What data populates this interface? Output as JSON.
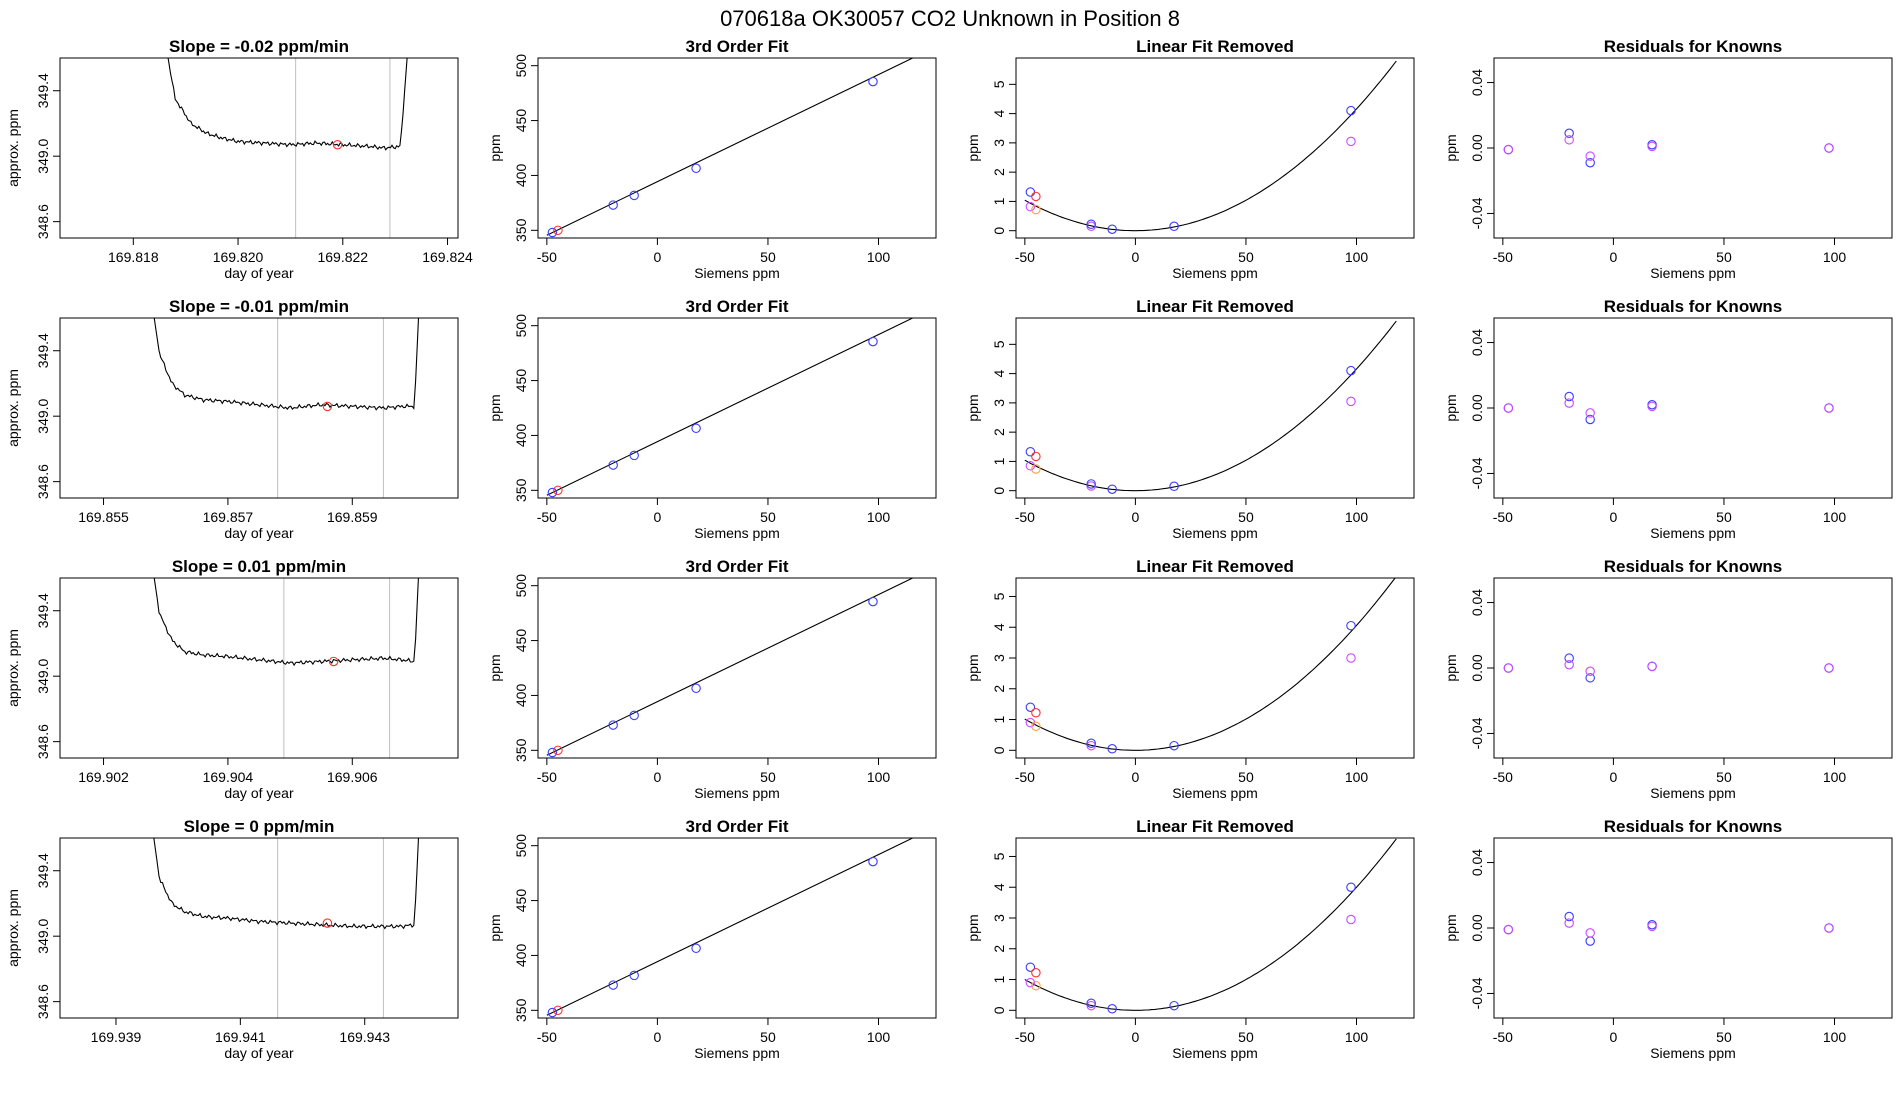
{
  "page_title": "070618a      OK30057    CO2 Unknown in Position  8",
  "colors": {
    "known_blue": "#3b3bff",
    "unknown_red": "#ff3030",
    "violet": "#c84bff",
    "orange": "#ffa040",
    "curve": "#000000",
    "vline": "#bfbfbf"
  },
  "chart_data": [
    {
      "type": "line",
      "panel": "timeseries",
      "row": 0,
      "title": "Slope =  -0.02  ppm/min",
      "xlabel": "day of year",
      "ylabel": "approx. ppm",
      "xlim": [
        169.8166,
        169.8242
      ],
      "ylim": [
        348.5,
        349.6
      ],
      "xticks": [
        169.818,
        169.82,
        169.822,
        169.824
      ],
      "xtick_labels": [
        "169.818",
        "169.820",
        "169.822",
        "169.824"
      ],
      "yticks": [
        348.6,
        349.0,
        349.4
      ],
      "ytick_labels": [
        "348.6",
        "349.0",
        "349.4"
      ],
      "vlines": [
        169.8211,
        169.8229
      ],
      "series_x": [
        169.8185,
        169.8188,
        169.8191,
        169.8194,
        169.8197,
        169.82,
        169.8205,
        169.821,
        169.8215,
        169.822,
        169.8225,
        169.8228,
        169.8231,
        169.8233
      ],
      "series_y": [
        349.9,
        349.35,
        349.2,
        349.14,
        349.11,
        349.09,
        349.08,
        349.07,
        349.08,
        349.07,
        349.06,
        349.05,
        349.06,
        349.9
      ],
      "marker": [
        169.8219,
        349.07
      ]
    },
    {
      "type": "scatter",
      "panel": "fit",
      "row": 0,
      "title": "3rd Order Fit",
      "xlabel": "Siemens ppm",
      "ylabel": "ppm",
      "xlim": [
        -54,
        126
      ],
      "ylim": [
        343,
        507
      ],
      "xticks": [
        -50,
        0,
        50,
        100
      ],
      "xtick_labels": [
        "-50",
        "0",
        "50",
        "100"
      ],
      "yticks": [
        350,
        400,
        450,
        500
      ],
      "ytick_labels": [
        "350",
        "400",
        "450",
        "500"
      ],
      "line": [
        [
          -50,
          345.5
        ],
        [
          118,
          509.5
        ]
      ],
      "points_blue": [
        [
          -47.5,
          348
        ],
        [
          -20,
          373
        ],
        [
          -10.5,
          381.8
        ],
        [
          17.5,
          406.5
        ],
        [
          97.5,
          485.5
        ]
      ],
      "points_red": [
        [
          -45,
          350
        ]
      ]
    },
    {
      "type": "scatter",
      "panel": "residual",
      "row": 0,
      "title": "Linear Fit Removed",
      "xlabel": "Siemens ppm",
      "ylabel": "ppm",
      "xlim": [
        -54,
        126
      ],
      "ylim": [
        -0.25,
        5.9
      ],
      "xticks": [
        -50,
        0,
        50,
        100
      ],
      "xtick_labels": [
        "-50",
        "0",
        "50",
        "100"
      ],
      "yticks": [
        0,
        1,
        2,
        3,
        4,
        5
      ],
      "ytick_labels": [
        "0",
        "1",
        "2",
        "3",
        "4",
        "5"
      ],
      "curve_a": 0.000416,
      "points_blue": [
        [
          -47.5,
          1.32
        ],
        [
          -20,
          0.22
        ],
        [
          -10.5,
          0.05
        ],
        [
          17.5,
          0.15
        ],
        [
          97.5,
          4.1
        ]
      ],
      "points_red": [
        [
          -45,
          1.17
        ]
      ],
      "points_violet": [
        [
          -47.5,
          0.82
        ],
        [
          -20,
          0.15
        ],
        [
          97.5,
          3.05
        ]
      ],
      "points_orange": [
        [
          -45,
          0.72
        ]
      ]
    },
    {
      "type": "scatter",
      "panel": "knowns",
      "row": 0,
      "title": "Residuals for Knowns",
      "xlabel": "Siemens ppm",
      "ylabel": "ppm",
      "xlim": [
        -54,
        126
      ],
      "ylim": [
        -0.055,
        0.055
      ],
      "xticks": [
        -50,
        0,
        50,
        100
      ],
      "xtick_labels": [
        "-50",
        "0",
        "50",
        "100"
      ],
      "yticks": [
        -0.04,
        0,
        0.04
      ],
      "ytick_labels": [
        "-0.04",
        "0.00",
        "0.04"
      ],
      "points_blue": [
        [
          -47.5,
          -0.001
        ],
        [
          -20,
          0.009
        ],
        [
          -10.5,
          -0.009
        ],
        [
          17.5,
          0.002
        ],
        [
          97.5,
          0.0
        ]
      ],
      "points_violet": [
        [
          -47.5,
          -0.001
        ],
        [
          -20,
          0.005
        ],
        [
          -10.5,
          -0.005
        ],
        [
          17.5,
          0.001
        ],
        [
          97.5,
          0.0
        ]
      ]
    },
    {
      "type": "line",
      "panel": "timeseries",
      "row": 1,
      "title": "Slope =  -0.01  ppm/min",
      "xlabel": "day of year",
      "ylabel": "approx. ppm",
      "xlim": [
        169.8543,
        169.8607
      ],
      "ylim": [
        348.5,
        349.6
      ],
      "xticks": [
        169.855,
        169.857,
        169.859
      ],
      "xtick_labels": [
        "169.855",
        "169.857",
        "169.859"
      ],
      "yticks": [
        348.6,
        349.0,
        349.4
      ],
      "ytick_labels": [
        "348.6",
        "349.0",
        "349.4"
      ],
      "vlines": [
        169.8578,
        169.8595
      ],
      "series_x": [
        169.8557,
        169.8559,
        169.8561,
        169.8563,
        169.8566,
        169.857,
        169.8575,
        169.858,
        169.8585,
        169.859,
        169.8595,
        169.8598,
        169.86,
        169.8601
      ],
      "series_y": [
        349.9,
        349.38,
        349.2,
        349.13,
        349.1,
        349.09,
        349.07,
        349.05,
        349.07,
        349.06,
        349.05,
        349.06,
        349.06,
        349.9
      ],
      "marker": [
        169.8586,
        349.06
      ]
    },
    {
      "type": "scatter",
      "panel": "fit",
      "row": 1,
      "title": "3rd Order Fit",
      "xlabel": "Siemens ppm",
      "ylabel": "ppm",
      "xlim": [
        -54,
        126
      ],
      "ylim": [
        343,
        507
      ],
      "xticks": [
        -50,
        0,
        50,
        100
      ],
      "xtick_labels": [
        "-50",
        "0",
        "50",
        "100"
      ],
      "yticks": [
        350,
        400,
        450,
        500
      ],
      "ytick_labels": [
        "350",
        "400",
        "450",
        "500"
      ],
      "line": [
        [
          -50,
          345.5
        ],
        [
          118,
          509.5
        ]
      ],
      "points_blue": [
        [
          -47.5,
          348
        ],
        [
          -20,
          373
        ],
        [
          -10.5,
          381.8
        ],
        [
          17.5,
          406.5
        ],
        [
          97.5,
          485.5
        ]
      ],
      "points_red": [
        [
          -45,
          350
        ]
      ]
    },
    {
      "type": "scatter",
      "panel": "residual",
      "row": 1,
      "title": "Linear Fit Removed",
      "xlabel": "Siemens ppm",
      "ylabel": "ppm",
      "xlim": [
        -54,
        126
      ],
      "ylim": [
        -0.25,
        5.9
      ],
      "xticks": [
        -50,
        0,
        50,
        100
      ],
      "xtick_labels": [
        "-50",
        "0",
        "50",
        "100"
      ],
      "yticks": [
        0,
        1,
        2,
        3,
        4,
        5
      ],
      "ytick_labels": [
        "0",
        "1",
        "2",
        "3",
        "4",
        "5"
      ],
      "curve_a": 0.000416,
      "points_blue": [
        [
          -47.5,
          1.33
        ],
        [
          -20,
          0.23
        ],
        [
          -10.5,
          0.05
        ],
        [
          17.5,
          0.15
        ],
        [
          97.5,
          4.1
        ]
      ],
      "points_red": [
        [
          -45,
          1.17
        ]
      ],
      "points_violet": [
        [
          -47.5,
          0.85
        ],
        [
          -20,
          0.16
        ],
        [
          97.5,
          3.05
        ]
      ],
      "points_orange": [
        [
          -45,
          0.74
        ]
      ]
    },
    {
      "type": "scatter",
      "panel": "knowns",
      "row": 1,
      "title": "Residuals for Knowns",
      "xlabel": "Siemens ppm",
      "ylabel": "ppm",
      "xlim": [
        -54,
        126
      ],
      "ylim": [
        -0.055,
        0.055
      ],
      "xticks": [
        -50,
        0,
        50,
        100
      ],
      "xtick_labels": [
        "-50",
        "0",
        "50",
        "100"
      ],
      "yticks": [
        -0.04,
        0,
        0.04
      ],
      "ytick_labels": [
        "-0.04",
        "0.00",
        "0.04"
      ],
      "points_blue": [
        [
          -47.5,
          0.0
        ],
        [
          -20,
          0.007
        ],
        [
          -10.5,
          -0.007
        ],
        [
          17.5,
          0.002
        ],
        [
          97.5,
          0.0
        ]
      ],
      "points_violet": [
        [
          -47.5,
          0.0
        ],
        [
          -20,
          0.003
        ],
        [
          -10.5,
          -0.003
        ],
        [
          17.5,
          0.001
        ],
        [
          97.5,
          0.0
        ]
      ]
    },
    {
      "type": "line",
      "panel": "timeseries",
      "row": 2,
      "title": "Slope =  0.01  ppm/min",
      "xlabel": "day of year",
      "ylabel": "approx. ppm",
      "xlim": [
        169.9013,
        169.9077
      ],
      "ylim": [
        348.5,
        349.6
      ],
      "xticks": [
        169.902,
        169.904,
        169.906
      ],
      "xtick_labels": [
        "169.902",
        "169.904",
        "169.906"
      ],
      "yticks": [
        348.6,
        349.0,
        349.4
      ],
      "ytick_labels": [
        "348.6",
        "349.0",
        "349.4"
      ],
      "vlines": [
        169.9049,
        169.9066
      ],
      "series_x": [
        169.9027,
        169.9029,
        169.9031,
        169.9033,
        169.9036,
        169.904,
        169.9045,
        169.905,
        169.9055,
        169.906,
        169.9065,
        169.9068,
        169.907,
        169.9071
      ],
      "series_y": [
        349.9,
        349.38,
        349.22,
        349.15,
        349.13,
        349.12,
        349.1,
        349.08,
        349.09,
        349.1,
        349.11,
        349.1,
        349.09,
        349.9
      ],
      "marker": [
        169.9057,
        349.09
      ]
    },
    {
      "type": "scatter",
      "panel": "fit",
      "row": 2,
      "title": "3rd Order Fit",
      "xlabel": "Siemens ppm",
      "ylabel": "ppm",
      "xlim": [
        -54,
        126
      ],
      "ylim": [
        343,
        507
      ],
      "xticks": [
        -50,
        0,
        50,
        100
      ],
      "xtick_labels": [
        "-50",
        "0",
        "50",
        "100"
      ],
      "yticks": [
        350,
        400,
        450,
        500
      ],
      "ytick_labels": [
        "350",
        "400",
        "450",
        "500"
      ],
      "line": [
        [
          -50,
          345.5
        ],
        [
          118,
          509.5
        ]
      ],
      "points_blue": [
        [
          -47.5,
          348
        ],
        [
          -20,
          373
        ],
        [
          -10.5,
          381.8
        ],
        [
          17.5,
          406.5
        ],
        [
          97.5,
          485.5
        ]
      ],
      "points_red": [
        [
          -45,
          350
        ]
      ]
    },
    {
      "type": "scatter",
      "panel": "residual",
      "row": 2,
      "title": "Linear Fit Removed",
      "xlabel": "Siemens ppm",
      "ylabel": "ppm",
      "xlim": [
        -54,
        126
      ],
      "ylim": [
        -0.25,
        5.6
      ],
      "xticks": [
        -50,
        0,
        50,
        100
      ],
      "xtick_labels": [
        "-50",
        "0",
        "50",
        "100"
      ],
      "yticks": [
        0,
        1,
        2,
        3,
        4,
        5
      ],
      "ytick_labels": [
        "0",
        "1",
        "2",
        "3",
        "4",
        "5"
      ],
      "curve_a": 0.000406,
      "points_blue": [
        [
          -47.5,
          1.4
        ],
        [
          -20,
          0.23
        ],
        [
          -10.5,
          0.05
        ],
        [
          17.5,
          0.15
        ],
        [
          97.5,
          4.05
        ]
      ],
      "points_red": [
        [
          -45,
          1.22
        ]
      ],
      "points_violet": [
        [
          -47.5,
          0.9
        ],
        [
          -20,
          0.15
        ],
        [
          97.5,
          3.0
        ]
      ],
      "points_orange": [
        [
          -45,
          0.78
        ]
      ]
    },
    {
      "type": "scatter",
      "panel": "knowns",
      "row": 2,
      "title": "Residuals for Knowns",
      "xlabel": "Siemens ppm",
      "ylabel": "ppm",
      "xlim": [
        -54,
        126
      ],
      "ylim": [
        -0.055,
        0.055
      ],
      "xticks": [
        -50,
        0,
        50,
        100
      ],
      "xtick_labels": [
        "-50",
        "0",
        "50",
        "100"
      ],
      "yticks": [
        -0.04,
        0,
        0.04
      ],
      "ytick_labels": [
        "-0.04",
        "0.00",
        "0.04"
      ],
      "points_blue": [
        [
          -47.5,
          0.0
        ],
        [
          -20,
          0.006
        ],
        [
          -10.5,
          -0.006
        ],
        [
          17.5,
          0.001
        ],
        [
          97.5,
          0.0
        ]
      ],
      "points_violet": [
        [
          -47.5,
          0.0
        ],
        [
          -20,
          0.002
        ],
        [
          -10.5,
          -0.002
        ],
        [
          17.5,
          0.001
        ],
        [
          97.5,
          0.0
        ]
      ]
    },
    {
      "type": "line",
      "panel": "timeseries",
      "row": 3,
      "title": "Slope =  0  ppm/min",
      "xlabel": "day of year",
      "ylabel": "approx. ppm",
      "xlim": [
        169.9381,
        169.9445
      ],
      "ylim": [
        348.5,
        349.6
      ],
      "xticks": [
        169.939,
        169.941,
        169.943
      ],
      "xtick_labels": [
        "169.939",
        "169.941",
        "169.943"
      ],
      "yticks": [
        348.6,
        349.0,
        349.4
      ],
      "ytick_labels": [
        "348.6",
        "349.0",
        "349.4"
      ],
      "vlines": [
        169.9416,
        169.9433
      ],
      "series_x": [
        169.9395,
        169.9397,
        169.9399,
        169.9401,
        169.9404,
        169.9408,
        169.9413,
        169.9418,
        169.9423,
        169.9428,
        169.9433,
        169.9436,
        169.9438,
        169.9439
      ],
      "series_y": [
        349.9,
        349.35,
        349.2,
        349.15,
        349.12,
        349.11,
        349.09,
        349.08,
        349.07,
        349.06,
        349.06,
        349.06,
        349.07,
        349.9
      ],
      "marker": [
        169.9424,
        349.08
      ]
    },
    {
      "type": "scatter",
      "panel": "fit",
      "row": 3,
      "title": "3rd Order Fit",
      "xlabel": "Siemens ppm",
      "ylabel": "ppm",
      "xlim": [
        -54,
        126
      ],
      "ylim": [
        343,
        507
      ],
      "xticks": [
        -50,
        0,
        50,
        100
      ],
      "xtick_labels": [
        "-50",
        "0",
        "50",
        "100"
      ],
      "yticks": [
        350,
        400,
        450,
        500
      ],
      "ytick_labels": [
        "350",
        "400",
        "450",
        "500"
      ],
      "line": [
        [
          -50,
          345.5
        ],
        [
          118,
          509.5
        ]
      ],
      "points_blue": [
        [
          -47.5,
          348
        ],
        [
          -20,
          373
        ],
        [
          -10.5,
          381.8
        ],
        [
          17.5,
          406.5
        ],
        [
          97.5,
          485.5
        ]
      ],
      "points_red": [
        [
          -45,
          350
        ]
      ]
    },
    {
      "type": "scatter",
      "panel": "residual",
      "row": 3,
      "title": "Linear Fit Removed",
      "xlabel": "Siemens ppm",
      "ylabel": "ppm",
      "xlim": [
        -54,
        126
      ],
      "ylim": [
        -0.25,
        5.6
      ],
      "xticks": [
        -50,
        0,
        50,
        100
      ],
      "xtick_labels": [
        "-50",
        "0",
        "50",
        "100"
      ],
      "yticks": [
        0,
        1,
        2,
        3,
        4,
        5
      ],
      "ytick_labels": [
        "0",
        "1",
        "2",
        "3",
        "4",
        "5"
      ],
      "curve_a": 0.0004,
      "points_blue": [
        [
          -47.5,
          1.4
        ],
        [
          -20,
          0.23
        ],
        [
          -10.5,
          0.05
        ],
        [
          17.5,
          0.15
        ],
        [
          97.5,
          4.0
        ]
      ],
      "points_red": [
        [
          -45,
          1.22
        ]
      ],
      "points_violet": [
        [
          -47.5,
          0.9
        ],
        [
          -20,
          0.15
        ],
        [
          97.5,
          2.95
        ]
      ],
      "points_orange": [
        [
          -45,
          0.8
        ]
      ]
    },
    {
      "type": "scatter",
      "panel": "knowns",
      "row": 3,
      "title": "Residuals for Knowns",
      "xlabel": "Siemens ppm",
      "ylabel": "ppm",
      "xlim": [
        -54,
        126
      ],
      "ylim": [
        -0.055,
        0.055
      ],
      "xticks": [
        -50,
        0,
        50,
        100
      ],
      "xtick_labels": [
        "-50",
        "0",
        "50",
        "100"
      ],
      "yticks": [
        -0.04,
        0,
        0.04
      ],
      "ytick_labels": [
        "-0.04",
        "0.00",
        "0.04"
      ],
      "points_blue": [
        [
          -47.5,
          -0.001
        ],
        [
          -20,
          0.007
        ],
        [
          -10.5,
          -0.008
        ],
        [
          17.5,
          0.002
        ],
        [
          97.5,
          0.0
        ]
      ],
      "points_violet": [
        [
          -47.5,
          -0.001
        ],
        [
          -20,
          0.003
        ],
        [
          -10.5,
          -0.003
        ],
        [
          17.5,
          0.001
        ],
        [
          97.5,
          0.0
        ]
      ]
    }
  ]
}
